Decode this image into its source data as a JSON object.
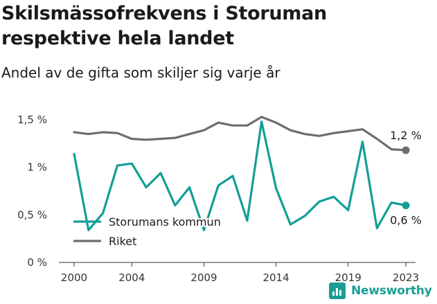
{
  "chart_data": {
    "type": "line",
    "title": "Skilsmässofrekvens i Storuman respektive hela landet",
    "subtitle": "Andel av de gifta som skiljer sig varje år",
    "x": [
      2000,
      2001,
      2002,
      2003,
      2004,
      2005,
      2006,
      2007,
      2008,
      2009,
      2010,
      2011,
      2012,
      2013,
      2014,
      2015,
      2016,
      2017,
      2018,
      2019,
      2020,
      2021,
      2022,
      2023
    ],
    "x_ticks": [
      "2000",
      "2004",
      "2009",
      "2014",
      "2019",
      "2023"
    ],
    "y_ticks": [
      "0 %",
      "0,5 %",
      "1 %",
      "1,5 %"
    ],
    "ylim": [
      0,
      1.5
    ],
    "series": [
      {
        "name": "Storumans kommun",
        "color": "#129e96",
        "values": [
          1.14,
          0.34,
          0.52,
          1.02,
          1.04,
          0.79,
          0.94,
          0.6,
          0.79,
          0.34,
          0.81,
          0.91,
          0.44,
          1.48,
          0.78,
          0.4,
          0.49,
          0.64,
          0.69,
          0.55,
          1.27,
          0.36,
          0.63,
          0.6
        ],
        "end_label": "0,6 %"
      },
      {
        "name": "Riket",
        "color": "#6d6d70",
        "values": [
          1.37,
          1.35,
          1.37,
          1.36,
          1.3,
          1.29,
          1.3,
          1.31,
          1.35,
          1.39,
          1.47,
          1.44,
          1.44,
          1.53,
          1.47,
          1.39,
          1.35,
          1.33,
          1.36,
          1.38,
          1.4,
          1.3,
          1.19,
          1.18
        ],
        "end_label": "1,2 %"
      }
    ],
    "legend_position": "bottom-left",
    "grid": false
  },
  "branding": {
    "name": "Newsworthy",
    "icon": "bar-chart-logo-icon",
    "color": "#1a9e96"
  }
}
